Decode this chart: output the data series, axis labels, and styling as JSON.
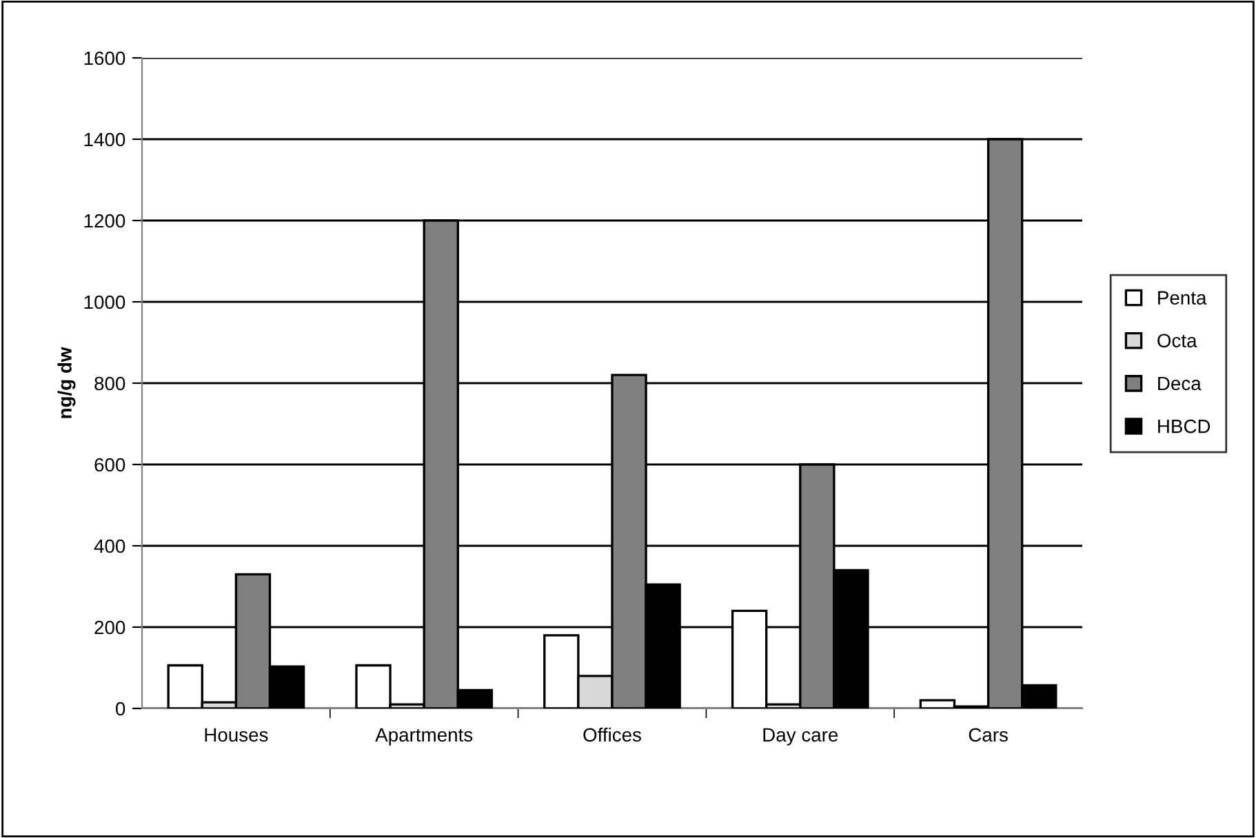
{
  "chart_data": {
    "type": "bar",
    "ylabel": "ng/g dw",
    "categories": [
      "Houses",
      "Apartments",
      "Offices",
      "Day care",
      "Cars"
    ],
    "series": [
      {
        "name": "Penta",
        "color": "#ffffff",
        "values": [
          106,
          106,
          180,
          240,
          20
        ]
      },
      {
        "name": "Octa",
        "color": "#d9d9d9",
        "values": [
          15,
          10,
          80,
          10,
          5
        ]
      },
      {
        "name": "Deca",
        "color": "#808080",
        "values": [
          330,
          1200,
          820,
          600,
          1400
        ]
      },
      {
        "name": "HBCD",
        "color": "#000000",
        "values": [
          103,
          45,
          305,
          340,
          57
        ]
      }
    ],
    "ylim": [
      0,
      1600
    ],
    "yticks": [
      0,
      200,
      400,
      600,
      800,
      1000,
      1200,
      1400,
      1600
    ],
    "grid": "y",
    "legend": "right"
  }
}
